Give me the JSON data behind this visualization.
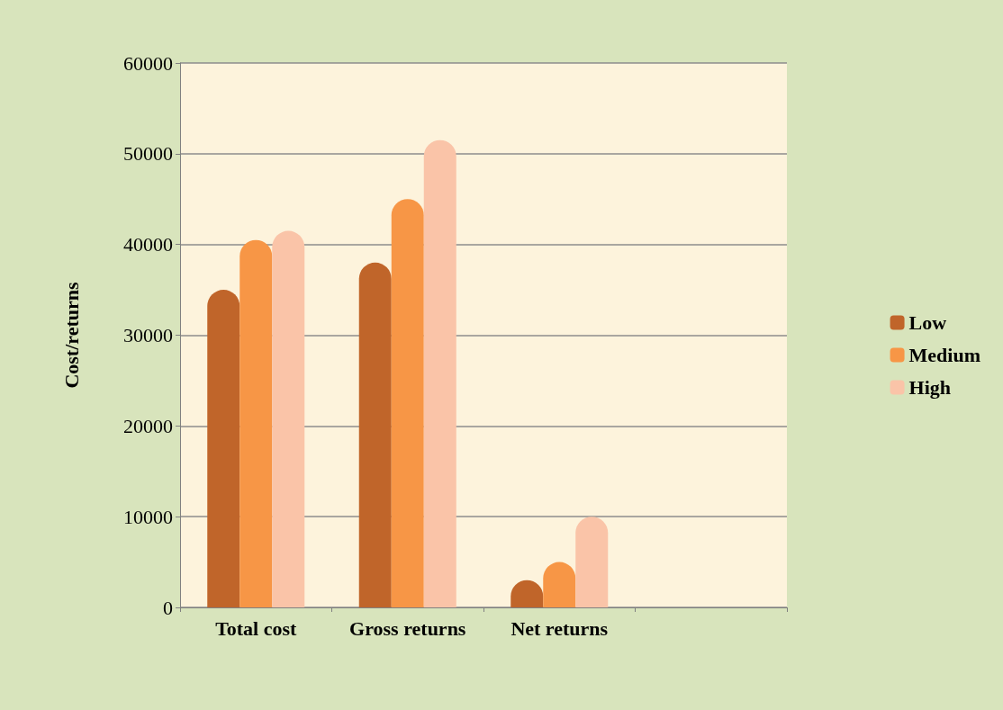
{
  "chart_data": {
    "type": "bar",
    "ylabel": "Cost/returns",
    "categories": [
      "Total cost",
      "Gross returns",
      "Net returns",
      null
    ],
    "series": [
      {
        "name": "Low",
        "color": "#c0652a",
        "values": [
          35000,
          38000,
          3000,
          null
        ]
      },
      {
        "name": "Medium",
        "color": "#f79646",
        "values": [
          40500,
          45000,
          5000,
          null
        ]
      },
      {
        "name": "High",
        "color": "#fac4a8",
        "values": [
          41500,
          51500,
          10000,
          null
        ]
      }
    ],
    "ylim": [
      0,
      60000
    ],
    "yticks": [
      0,
      10000,
      20000,
      30000,
      40000,
      50000,
      60000
    ],
    "grid": "y",
    "legend": "right"
  }
}
